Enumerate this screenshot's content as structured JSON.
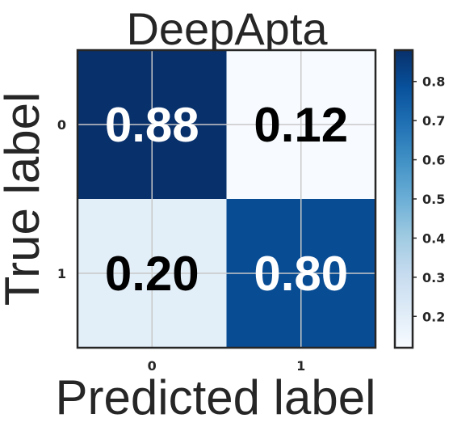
{
  "chart_data": {
    "type": "heatmap",
    "title": "DeepApta",
    "xlabel": "Predicted label",
    "ylabel": "True label",
    "x_categories": [
      "0",
      "1"
    ],
    "y_categories": [
      "0",
      "1"
    ],
    "values": [
      [
        0.88,
        0.12
      ],
      [
        0.2,
        0.8
      ]
    ],
    "cell_labels": [
      [
        "0.88",
        "0.12"
      ],
      [
        "0.20",
        "0.80"
      ]
    ],
    "colorscale": "Blues",
    "color_range": [
      0.12,
      0.88
    ],
    "colorbar_ticks": [
      "0.2",
      "0.3",
      "0.4",
      "0.5",
      "0.6",
      "0.7",
      "0.8"
    ],
    "colorbar_tick_values": [
      0.2,
      0.3,
      0.4,
      0.5,
      0.6,
      0.7,
      0.8
    ],
    "grid": true,
    "colors": {
      "low": "#f7fbff",
      "high": "#08306b",
      "text_dark": "#000000",
      "text_light": "#ffffff"
    }
  }
}
